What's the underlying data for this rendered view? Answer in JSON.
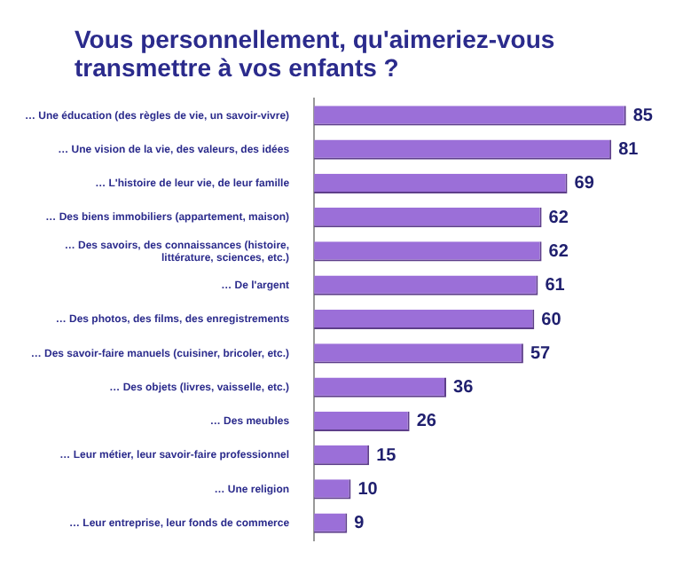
{
  "chart_data": {
    "type": "bar",
    "orientation": "horizontal",
    "title": "Vous personnellement, qu'aimeriez-vous transmettre à vos enfants ?",
    "categories": [
      "… Une éducation (des règles de vie, un savoir-vivre)",
      "… Une vision de la vie, des valeurs, des idées",
      "… L'histoire de leur vie, de leur famille",
      "… Des biens immobiliers (appartement, maison)",
      "… Des savoirs, des connaissances (histoire, littérature, sciences, etc.)",
      "… De l'argent",
      "… Des photos, des films, des enregistrements",
      "… Des savoir-faire manuels (cuisiner, bricoler, etc.)",
      "… Des objets (livres, vaisselle, etc.)",
      "… Des meubles",
      "… Leur métier, leur savoir-faire professionnel",
      "… Une religion",
      "… Leur entreprise, leur fonds de commerce"
    ],
    "values": [
      85,
      81,
      69,
      62,
      62,
      61,
      60,
      57,
      36,
      26,
      15,
      10,
      9
    ],
    "color": "#9b6fd8",
    "data_labels": true
  }
}
